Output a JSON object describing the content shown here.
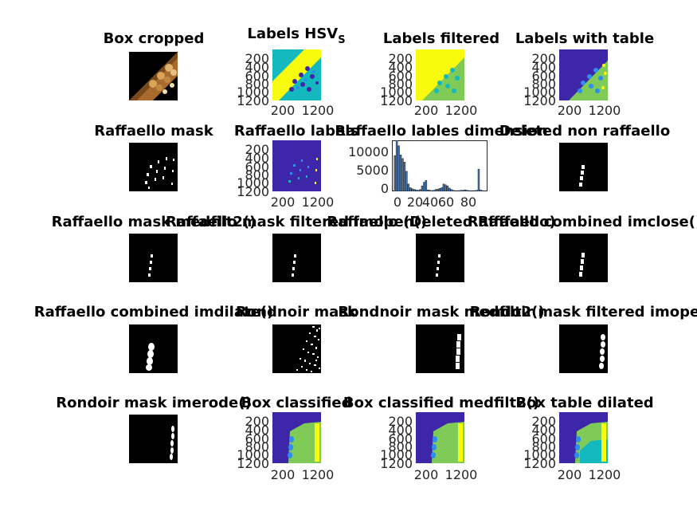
{
  "titles": {
    "box_cropped": "Box cropped",
    "labels_hsv": "Labels HSV",
    "labels_hsv_sub": "S",
    "labels_filtered": "Labels filtered",
    "labels_with_table": "Labels with table",
    "raffaello_mask": "Raffaello mask",
    "raffaello_labels": "Raffaello labels",
    "raffaello_lables_dimension": "Raffaello lables dimension",
    "deleted_non_raffaello": "Deleted non raffaello",
    "raffaello_mask_medfilt2": "Raffaello mask medfilt2()",
    "raffaello_mask_filtered_imopen": "Raffaello mask filtered imopen()",
    "raffaello_deleted_raffaello": "Raffaello (Deleted Raffaello)",
    "raffaello_combined_imclose": "Raffaello combined imclose()",
    "raffaello_combined_imdilate": "Raffaello combined imdilate()",
    "rondnoir_mask": "Rondnoir mask",
    "rondnoir_mask_medfilt2": "Rondnoir mask medfilt2()",
    "rondoir_mask_filtered_imope": "Rondoir mask filtered imope",
    "rondoir_mask_imerode": "Rondoir mask imerode()",
    "box_classified": "Box classified",
    "box_classified_medfilt2": "Box classified medfilt2()",
    "box_table_dilated": "Box table dilated"
  },
  "axis": {
    "yticks": [
      "200",
      "400",
      "600",
      "800",
      "1000",
      "1200"
    ],
    "xticks": [
      "200",
      "1200"
    ]
  },
  "chart_data": {
    "type": "bar",
    "title": "Raffaello lables dimension",
    "xticks": [
      "0",
      "20",
      "40",
      "60",
      "80"
    ],
    "yticks": [
      "10000",
      "5000",
      "0"
    ],
    "xlim": [
      -2,
      96
    ],
    "ylim": [
      0,
      14000
    ],
    "x": [
      1,
      3,
      5,
      7,
      9,
      11,
      13,
      15,
      17,
      19,
      21,
      23,
      25,
      27,
      29,
      31,
      33,
      35,
      37,
      39,
      41,
      43,
      45,
      47,
      49,
      51,
      53,
      55,
      57,
      59,
      61,
      63,
      65,
      67,
      69,
      71,
      73,
      75,
      77,
      79,
      81,
      83,
      85,
      87,
      89,
      91
    ],
    "values": [
      9800,
      14000,
      12500,
      10000,
      9000,
      8000,
      5500,
      2000,
      1000,
      700,
      500,
      400,
      300,
      500,
      1500,
      2500,
      3000,
      400,
      300,
      200,
      300,
      500,
      600,
      800,
      1000,
      2000,
      1800,
      1500,
      900,
      500,
      300,
      200,
      200,
      200,
      300,
      300,
      400,
      300,
      200,
      200,
      200,
      200,
      300,
      6100,
      400,
      200
    ]
  },
  "colors": {
    "parula_dark": "#3d26a8",
    "parula_blue": "#2c8ef0",
    "parula_teal": "#14b9bf",
    "parula_green": "#80cb58",
    "parula_yellow": "#f9fb0e",
    "bar_fill": "#4a7ab5"
  }
}
